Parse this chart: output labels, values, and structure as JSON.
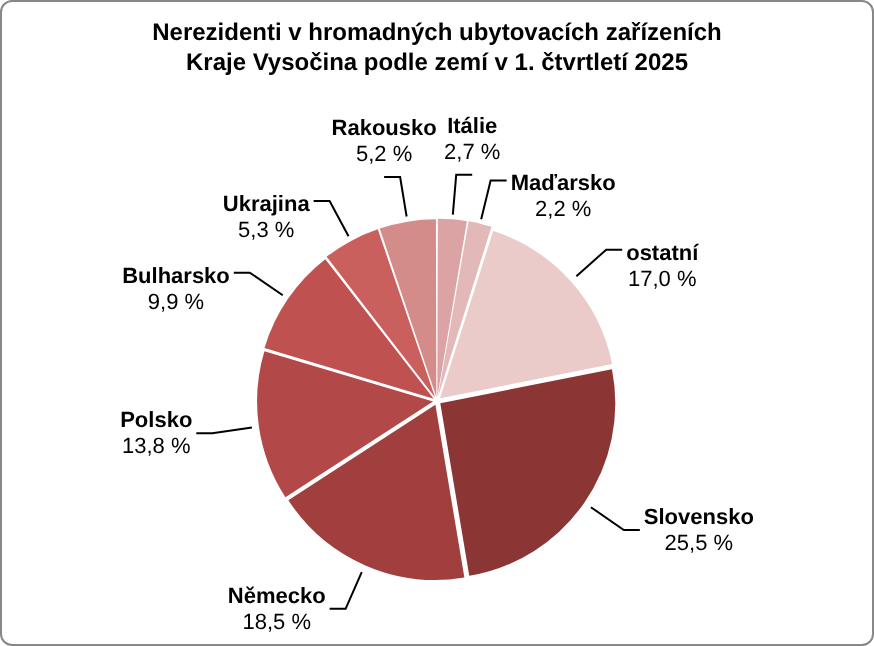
{
  "chart_data": {
    "type": "pie",
    "title": "Nerezidenti v hromadných ubytovacích zařízeních\nKraje Vysočina podle zemí v 1. čtvrtletí 2025",
    "categories": [
      "Itálie",
      "Maďarsko",
      "ostatní",
      "Slovensko",
      "Německo",
      "Polsko",
      "Bulharsko",
      "Ukrajina",
      "Rakousko"
    ],
    "values": [
      2.7,
      2.2,
      17.0,
      25.5,
      18.5,
      13.8,
      9.9,
      5.3,
      5.2
    ],
    "value_labels": [
      "2,7 %",
      "2,2 %",
      "17,0 %",
      "25,5 %",
      "18,5 %",
      "13,8 %",
      "9,9 %",
      "5,3 %",
      "5,2 %"
    ],
    "colors": [
      "#dba3a3",
      "#e3b8b8",
      "#ebcaca",
      "#8b3535",
      "#a03f3e",
      "#b24847",
      "#bf5150",
      "#c9605e",
      "#d48c8b"
    ],
    "legend": false
  }
}
